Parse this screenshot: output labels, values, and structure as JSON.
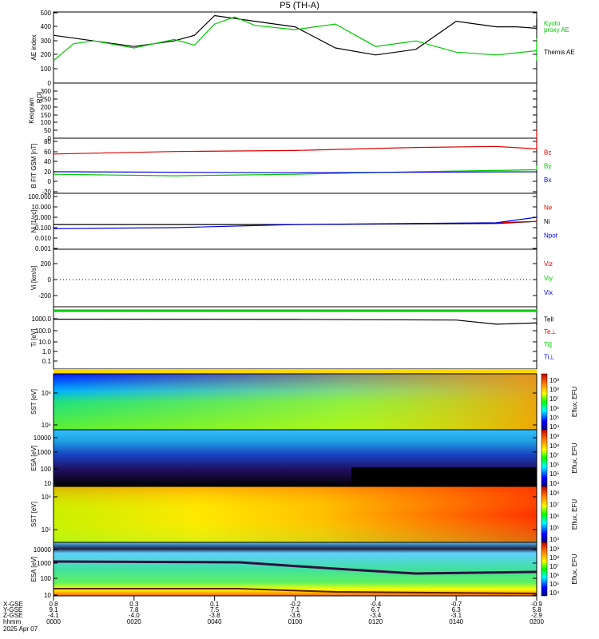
{
  "title": "P5 (TH-A)",
  "colors": {
    "black": "#000000",
    "green": "#00c800",
    "red": "#e00000",
    "blue": "#0000e0"
  },
  "panels": [
    {
      "id": "ae",
      "ylabel": "AE index",
      "ticks": [
        "0",
        "100",
        "200",
        "300",
        "400",
        "500"
      ],
      "legend": [
        {
          "text": "Kyoto",
          "color": "#00c800"
        },
        {
          "text": "proxy AE",
          "color": "#00c800"
        },
        {
          "text": "Themis AE",
          "color": "#000000"
        }
      ]
    },
    {
      "id": "roi",
      "ylabel": "ROI",
      "ticks": [
        "0",
        "50",
        "100",
        "150",
        "200",
        "250",
        "300"
      ],
      "sub": "Keogram"
    },
    {
      "id": "bfield",
      "ylabel": "B FIT GSM [nT]",
      "ticks": [
        "-20",
        "0",
        "20",
        "40",
        "60",
        "80"
      ],
      "legend": [
        {
          "text": "Bz",
          "color": "#e00000"
        },
        {
          "text": "By",
          "color": "#00c800"
        },
        {
          "text": "Bx",
          "color": "#0000e0"
        }
      ]
    },
    {
      "id": "density",
      "ylabel": "Ni [1/cc]",
      "ticks": [
        "0.001",
        "0.010",
        "0.100",
        "1.000",
        "10.000",
        "100.000"
      ],
      "legend": [
        {
          "text": "Ne",
          "color": "#e00000"
        },
        {
          "text": "Ni",
          "color": "#000000"
        },
        {
          "text": "Npot",
          "color": "#0000e0"
        }
      ]
    },
    {
      "id": "velocity",
      "ylabel": "Vi [km/s]",
      "ticks": [
        "-200",
        "0",
        "200"
      ],
      "legend": [
        {
          "text": "Viz",
          "color": "#e00000"
        },
        {
          "text": "Viy",
          "color": "#00c800"
        },
        {
          "text": "Vix",
          "color": "#0000e0"
        }
      ]
    },
    {
      "id": "temperature",
      "ylabel": "Ti [eV]",
      "ticks": [
        "0.1",
        "1.0",
        "10.0",
        "100.0",
        "1000.0"
      ],
      "legend": [
        {
          "text": "Tell",
          "color": "#000000"
        },
        {
          "text": "Te⊥",
          "color": "#e00000"
        },
        {
          "text": "Ti∥",
          "color": "#00c800"
        },
        {
          "text": "Ti⊥",
          "color": "#0000e0"
        }
      ]
    },
    {
      "id": "sst_e",
      "ylabel": "SST [eV]",
      "ticks": [
        "10⁶",
        "10⁵"
      ],
      "cbar": "Eflux, EFU",
      "cbar_ticks": [
        "10⁹",
        "10⁸",
        "10⁷",
        "10⁶",
        "10⁵",
        "10⁴"
      ]
    },
    {
      "id": "esa_e",
      "ylabel": "ESA [eV]",
      "ticks": [
        "10000",
        "1000",
        "100",
        "10"
      ],
      "cbar": "Eflux, EFU",
      "cbar_ticks": [
        "10⁹",
        "10⁸",
        "10⁷",
        "10⁶",
        "10⁵",
        "10⁴"
      ]
    },
    {
      "id": "sst_i",
      "ylabel": "SST [eV]",
      "ticks": [
        "10⁶",
        "10⁵"
      ],
      "cbar": "Eflux, EFU",
      "cbar_ticks": [
        "10⁸",
        "10⁷",
        "10⁶",
        "10⁵",
        "10⁴"
      ]
    },
    {
      "id": "esa_i",
      "ylabel": "ESA [eV]",
      "ticks": [
        "10000",
        "1000",
        "100",
        "10"
      ],
      "cbar": "Eflux, EFU",
      "cbar_ticks": [
        "10⁹",
        "10⁸",
        "10⁷",
        "10⁶",
        "10⁵",
        "10⁴"
      ]
    }
  ],
  "xaxis": {
    "row_labels": [
      "X-GSE",
      "Y-GSE",
      "Z-GSE",
      "hhmm",
      "2025 Apr 07"
    ],
    "ticks": [
      {
        "x": "0.8",
        "y": "9.1",
        "z": "-4.1",
        "t": "0000"
      },
      {
        "x": "0.3",
        "y": "7.8",
        "z": "-4.0",
        "t": "0020"
      },
      {
        "x": "0.1",
        "y": "7.5",
        "z": "-3.8",
        "t": "0040"
      },
      {
        "x": "-0.2",
        "y": "7.1",
        "z": "-3.6",
        "t": "0100"
      },
      {
        "x": "-0.4",
        "y": "6.7",
        "z": "-3.4",
        "t": "0120"
      },
      {
        "x": "-0.7",
        "y": "6.3",
        "z": "-3.1",
        "t": "0140"
      },
      {
        "x": "-0.9",
        "y": "5.8",
        "z": "-2.9",
        "t": "0200"
      }
    ]
  },
  "chart_data": {
    "type": "line",
    "title": "P5 (TH-A)",
    "x_range_hhmm": [
      "0000",
      "0200"
    ],
    "series": [
      {
        "name": "Themis AE",
        "panel": "ae",
        "x_min": [
          0,
          10,
          20,
          30,
          35,
          40,
          50,
          60,
          70,
          80,
          90,
          100,
          105,
          110,
          115,
          120,
          130,
          140,
          150,
          160,
          170,
          180
        ],
        "values": [
          340,
          300,
          260,
          300,
          340,
          480,
          440,
          400,
          250,
          200,
          240,
          440,
          420,
          400,
          400,
          390,
          380,
          380,
          390,
          410,
          440,
          460
        ]
      },
      {
        "name": "Kyoto proxy AE",
        "panel": "ae",
        "x_min": [
          0,
          5,
          10,
          20,
          30,
          35,
          40,
          45,
          50,
          60,
          70,
          80,
          90,
          100,
          110,
          120,
          130,
          140,
          150,
          160,
          170,
          180
        ],
        "values": [
          160,
          280,
          300,
          250,
          310,
          270,
          420,
          470,
          410,
          380,
          420,
          260,
          300,
          220,
          200,
          230,
          300,
          160,
          250,
          320,
          200,
          320
        ]
      },
      {
        "name": "Bz",
        "panel": "bfield",
        "x_min": [
          0,
          30,
          60,
          90,
          110,
          120,
          130,
          150,
          180
        ],
        "values": [
          35,
          40,
          42,
          48,
          50,
          45,
          58,
          70,
          85
        ]
      },
      {
        "name": "By",
        "panel": "bfield",
        "x_min": [
          0,
          30,
          60,
          90,
          120,
          150,
          180
        ],
        "values": [
          -5,
          -8,
          -5,
          0,
          4,
          8,
          12
        ]
      },
      {
        "name": "Bx",
        "panel": "bfield",
        "x_min": [
          0,
          60,
          120,
          180
        ],
        "values": [
          0,
          -2,
          0,
          2
        ]
      },
      {
        "name": "Ni",
        "panel": "density",
        "x_min": [
          0,
          60,
          110,
          130,
          150,
          180
        ],
        "values": [
          0.2,
          0.2,
          0.25,
          0.4,
          0.4,
          0.5
        ]
      },
      {
        "name": "Ne",
        "panel": "density",
        "x_min": [
          110,
          120,
          130,
          150,
          180
        ],
        "values": [
          0.3,
          0.4,
          0.5,
          0.45,
          0.5
        ]
      },
      {
        "name": "Npot",
        "panel": "density",
        "x_min": [
          0,
          30,
          60,
          110,
          120,
          130,
          140,
          150,
          160,
          180
        ],
        "values": [
          0.08,
          0.1,
          0.2,
          0.3,
          1.0,
          1.2,
          1.5,
          1.4,
          1.0,
          0.9
        ]
      },
      {
        "name": "Viy",
        "panel": "velocity",
        "x_min": [
          0,
          180
        ],
        "values": [
          -440,
          -440
        ]
      },
      {
        "name": "Ti",
        "panel": "temperature",
        "x_min": [
          0,
          60,
          100,
          110,
          120,
          140,
          160,
          170,
          180
        ],
        "values": [
          900,
          850,
          750,
          300,
          400,
          250,
          350,
          300,
          400
        ]
      }
    ]
  }
}
